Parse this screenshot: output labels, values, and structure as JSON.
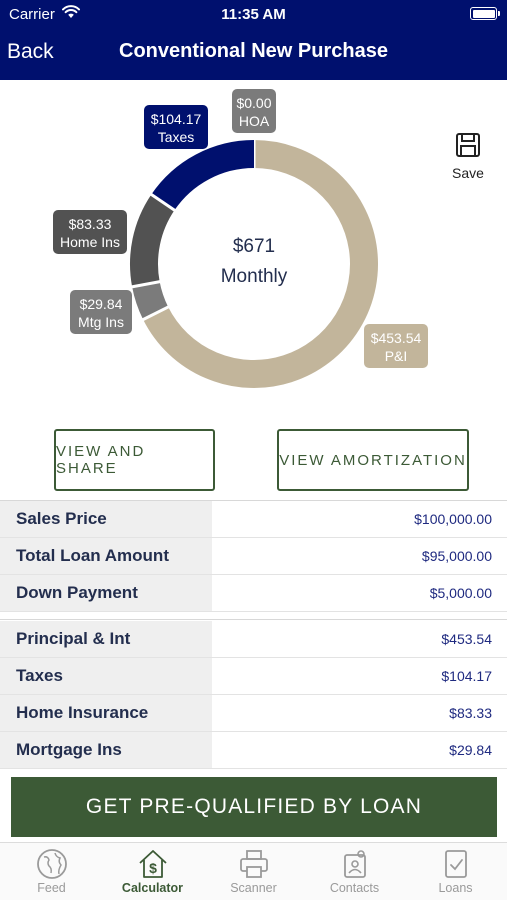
{
  "status_bar": {
    "carrier": "Carrier",
    "time": "11:35 AM"
  },
  "nav": {
    "back_label": "Back",
    "title": "Conventional New Purchase"
  },
  "chart_data": {
    "type": "pie",
    "center_amount": "$671",
    "center_label": "Monthly",
    "slices": [
      {
        "name": "P&I",
        "value": 453.54,
        "display": "$453.54",
        "color": "#c2b59b"
      },
      {
        "name": "Mtg Ins",
        "value": 29.84,
        "display": "$29.84",
        "color": "#7b7b7b"
      },
      {
        "name": "Home Ins",
        "value": 83.33,
        "display": "$83.33",
        "color": "#525252"
      },
      {
        "name": "Taxes",
        "value": 104.17,
        "display": "$104.17",
        "color": "#00106e"
      },
      {
        "name": "HOA",
        "value": 0.0,
        "display": "$0.00",
        "color": "#7b7b7b"
      }
    ]
  },
  "save": {
    "label": "Save",
    "icon": "floppy-disk-icon"
  },
  "buttons": {
    "view_share": "VIEW AND SHARE",
    "view_amortization": "VIEW AMORTIZATION"
  },
  "loan_details": [
    {
      "label": "Sales Price",
      "value": "$100,000.00"
    },
    {
      "label": "Total Loan Amount",
      "value": "$95,000.00"
    },
    {
      "label": "Down Payment",
      "value": "$5,000.00"
    }
  ],
  "payment_details": [
    {
      "label": "Principal & Int",
      "value": "$453.54"
    },
    {
      "label": "Taxes",
      "value": "$104.17"
    },
    {
      "label": "Home Insurance",
      "value": "$83.33"
    },
    {
      "label": "Mortgage Ins",
      "value": "$29.84"
    }
  ],
  "cta": {
    "label": "GET PRE-QUALIFIED BY LOAN"
  },
  "tabs": [
    {
      "label": "Feed",
      "icon": "globe-icon"
    },
    {
      "label": "Calculator",
      "icon": "house-dollar-icon"
    },
    {
      "label": "Scanner",
      "icon": "printer-icon"
    },
    {
      "label": "Contacts",
      "icon": "contacts-icon"
    },
    {
      "label": "Loans",
      "icon": "document-check-icon"
    }
  ],
  "colors": {
    "nav_bg": "#00106e",
    "accent_green": "#3c5a36",
    "label_bg": "#efefef",
    "value_text": "#1f2a80"
  }
}
